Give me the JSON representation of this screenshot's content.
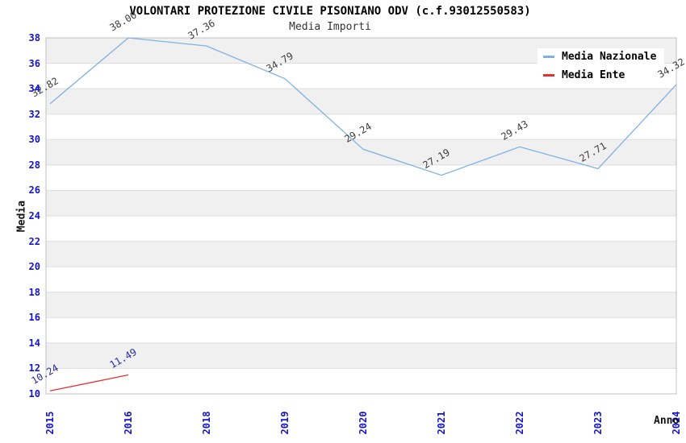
{
  "chart_data": {
    "type": "line",
    "title": "VOLONTARI PROTEZIONE CIVILE PISONIANO ODV (c.f.93012550583)",
    "subtitle": "Media Importi",
    "xlabel": "Anno",
    "ylabel": "Media",
    "categories": [
      "2015",
      "2016",
      "2018",
      "2019",
      "2020",
      "2021",
      "2022",
      "2023",
      "2024"
    ],
    "series": [
      {
        "name": "Media Nazionale",
        "color": "#7fb1e3",
        "label_color": "#3c3c3c",
        "values": [
          32.82,
          38.0,
          37.36,
          34.79,
          29.24,
          27.19,
          29.43,
          27.71,
          34.32
        ],
        "point_labels": [
          "32.82",
          "38.00",
          "37.36",
          "34.79",
          "29.24",
          "27.19",
          "29.43",
          "27.71",
          "34.32"
        ]
      },
      {
        "name": "Media Ente",
        "color": "#e13232",
        "label_color": "#2929a3",
        "values": [
          10.24,
          11.49,
          null,
          null,
          null,
          null,
          null,
          null,
          null
        ],
        "point_labels": [
          "10.24",
          "11.49",
          null,
          null,
          null,
          null,
          null,
          null,
          null
        ]
      }
    ],
    "ylim": [
      10,
      38
    ],
    "ytick_step": 2,
    "tick_color": "#1414cc",
    "band_color": "#f0f0f0",
    "grid_color": "#dddddd",
    "border_color": "#c0c0c0",
    "grid": "horizontal-bands",
    "legend_position": "top-right"
  }
}
